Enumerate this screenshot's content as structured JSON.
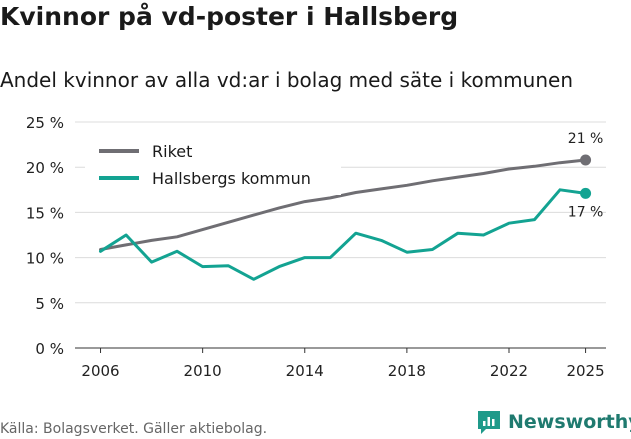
{
  "title": "Kvinnor på vd-poster i Hallsberg",
  "subtitle": "Andel kvinnor av alla vd:ar i bolag med säte i kommunen",
  "source": "Källa: Bolagsverket. Gäller aktiebolag.",
  "brand": {
    "name": "Newsworthy",
    "color": "#1f9a8a"
  },
  "chart_data": {
    "type": "line",
    "x": [
      2006,
      2007,
      2008,
      2009,
      2010,
      2011,
      2012,
      2013,
      2014,
      2015,
      2016,
      2017,
      2018,
      2019,
      2020,
      2021,
      2022,
      2023,
      2024,
      2025
    ],
    "series": [
      {
        "name": "Riket",
        "color": "#6f6e73",
        "values": [
          10.9,
          11.4,
          11.9,
          12.3,
          13.1,
          13.9,
          14.7,
          15.5,
          16.2,
          16.6,
          17.2,
          17.6,
          18.0,
          18.5,
          18.9,
          19.3,
          19.8,
          20.1,
          20.5,
          20.8
        ],
        "end_label": "21 %"
      },
      {
        "name": "Hallsbergs kommun",
        "color": "#13a392",
        "values": [
          10.7,
          12.5,
          9.5,
          10.7,
          9.0,
          9.1,
          7.6,
          9.0,
          10.0,
          10.0,
          12.7,
          11.9,
          10.6,
          10.9,
          12.7,
          12.5,
          13.8,
          14.2,
          17.5,
          17.1
        ],
        "end_label": "17 %"
      }
    ],
    "ylim": [
      0,
      25
    ],
    "xlim": [
      2005,
      2025.8
    ],
    "yticks": [
      0,
      5,
      10,
      15,
      20,
      25
    ],
    "ytick_labels": [
      "0 %",
      "5 %",
      "10 %",
      "15 %",
      "20 %",
      "25 %"
    ],
    "xticks": [
      2006,
      2010,
      2014,
      2018,
      2022,
      2025
    ],
    "xtick_labels": [
      "2006",
      "2010",
      "2014",
      "2018",
      "2022",
      "2025"
    ],
    "grid": true,
    "legend_position": "top-left"
  }
}
